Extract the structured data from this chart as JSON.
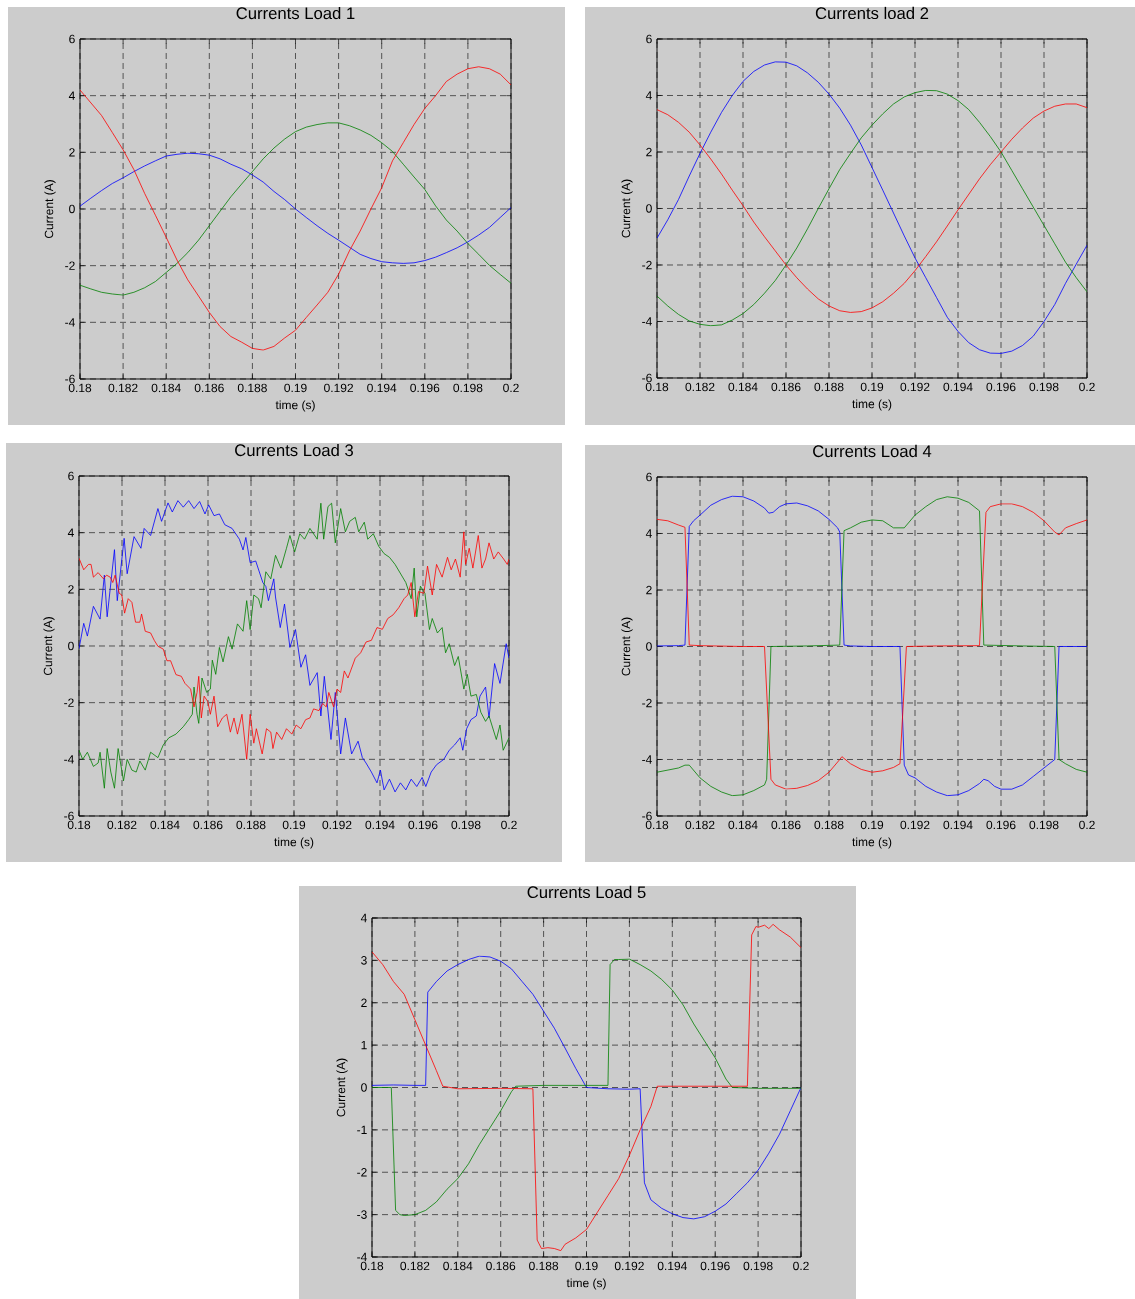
{
  "chart_data": [
    {
      "type": "line",
      "title": "Currents Load 1",
      "xlabel": "time (s)",
      "ylabel": "Current (A)",
      "xlim": [
        0.18,
        0.2
      ],
      "ylim": [
        -6,
        6
      ],
      "xticks": [
        0.18,
        0.182,
        0.184,
        0.186,
        0.188,
        0.19,
        0.192,
        0.194,
        0.196,
        0.198,
        0.2
      ],
      "yticks": [
        -6,
        -4,
        -2,
        0,
        2,
        4,
        6
      ],
      "grid": true,
      "x": [
        0.18,
        0.1805,
        0.181,
        0.1815,
        0.182,
        0.1825,
        0.183,
        0.1835,
        0.184,
        0.1845,
        0.185,
        0.1855,
        0.186,
        0.1865,
        0.187,
        0.1875,
        0.188,
        0.1885,
        0.189,
        0.1895,
        0.19,
        0.1905,
        0.191,
        0.1915,
        0.192,
        0.1925,
        0.193,
        0.1935,
        0.194,
        0.1945,
        0.195,
        0.1955,
        0.196,
        0.1965,
        0.197,
        0.1975,
        0.198,
        0.1985,
        0.199,
        0.1995,
        0.2
      ],
      "series": [
        {
          "color": "#0000ff",
          "values": [
            0.1,
            0.38,
            0.65,
            0.9,
            1.1,
            1.32,
            1.52,
            1.7,
            1.87,
            1.93,
            1.97,
            1.95,
            1.9,
            1.77,
            1.58,
            1.42,
            1.2,
            0.95,
            0.62,
            0.33,
            0.0,
            -0.3,
            -0.59,
            -0.86,
            -1.1,
            -1.35,
            -1.6,
            -1.75,
            -1.86,
            -1.9,
            -1.92,
            -1.9,
            -1.82,
            -1.7,
            -1.54,
            -1.37,
            -1.16,
            -0.92,
            -0.65,
            -0.3,
            0.05
          ]
        },
        {
          "color": "#008000",
          "values": [
            -2.69,
            -2.82,
            -2.94,
            -3.0,
            -3.04,
            -2.94,
            -2.78,
            -2.56,
            -2.24,
            -1.92,
            -1.54,
            -1.1,
            -0.59,
            -0.08,
            0.43,
            0.88,
            1.32,
            1.77,
            2.15,
            2.47,
            2.73,
            2.89,
            2.98,
            3.04,
            3.04,
            2.94,
            2.79,
            2.6,
            2.34,
            2.03,
            1.58,
            1.13,
            0.69,
            0.11,
            -0.39,
            -0.78,
            -1.22,
            -1.6,
            -1.99,
            -2.31,
            -2.62
          ]
        },
        {
          "color": "#ff0000",
          "values": [
            4.2,
            3.75,
            3.3,
            2.7,
            2.09,
            1.39,
            0.55,
            -0.22,
            -1.0,
            -1.8,
            -2.5,
            -3.07,
            -3.65,
            -4.15,
            -4.5,
            -4.7,
            -4.92,
            -4.98,
            -4.85,
            -4.55,
            -4.28,
            -3.83,
            -3.39,
            -2.94,
            -2.3,
            -1.48,
            -0.78,
            0.0,
            0.75,
            1.7,
            2.34,
            2.98,
            3.55,
            4.0,
            4.5,
            4.76,
            4.95,
            5.02,
            4.95,
            4.76,
            4.38
          ]
        }
      ]
    },
    {
      "type": "line",
      "title": "Currents load 2",
      "xlabel": "time (s)",
      "ylabel": "Current (A)",
      "xlim": [
        0.18,
        0.2
      ],
      "ylim": [
        -6,
        6
      ],
      "xticks": [
        0.18,
        0.182,
        0.184,
        0.186,
        0.188,
        0.19,
        0.192,
        0.194,
        0.196,
        0.198,
        0.2
      ],
      "yticks": [
        -6,
        -4,
        -2,
        0,
        2,
        4,
        6
      ],
      "grid": true,
      "x": [
        0.18,
        0.1805,
        0.181,
        0.1815,
        0.182,
        0.1825,
        0.183,
        0.1835,
        0.184,
        0.1845,
        0.185,
        0.1855,
        0.186,
        0.1865,
        0.187,
        0.1875,
        0.188,
        0.1885,
        0.189,
        0.1895,
        0.19,
        0.1905,
        0.191,
        0.1915,
        0.192,
        0.1925,
        0.193,
        0.1935,
        0.194,
        0.1945,
        0.195,
        0.1955,
        0.196,
        0.1965,
        0.197,
        0.1975,
        0.198,
        0.1985,
        0.199,
        0.1995,
        0.2
      ],
      "series": [
        {
          "color": "#0000ff",
          "values": [
            -1.05,
            -0.4,
            0.32,
            1.15,
            1.95,
            2.7,
            3.4,
            4.0,
            4.5,
            4.85,
            5.08,
            5.19,
            5.18,
            5.05,
            4.8,
            4.47,
            4.05,
            3.55,
            2.95,
            2.25,
            1.45,
            0.65,
            -0.16,
            -0.97,
            -1.75,
            -2.45,
            -3.15,
            -3.85,
            -4.35,
            -4.75,
            -5.0,
            -5.12,
            -5.13,
            -5.05,
            -4.85,
            -4.52,
            -4.0,
            -3.4,
            -2.65,
            -1.97,
            -1.3
          ]
        },
        {
          "color": "#008000",
          "values": [
            -3.1,
            -3.45,
            -3.75,
            -3.98,
            -4.1,
            -4.15,
            -4.12,
            -3.95,
            -3.72,
            -3.4,
            -3.0,
            -2.55,
            -2.0,
            -1.4,
            -0.72,
            0.0,
            0.7,
            1.38,
            1.95,
            2.5,
            2.95,
            3.35,
            3.7,
            3.95,
            4.1,
            4.18,
            4.17,
            4.05,
            3.82,
            3.5,
            3.05,
            2.55,
            2.0,
            1.35,
            0.7,
            0.05,
            -0.6,
            -1.25,
            -1.9,
            -2.45,
            -2.95
          ]
        },
        {
          "color": "#ff0000",
          "values": [
            3.5,
            3.32,
            3.05,
            2.7,
            2.25,
            1.75,
            1.22,
            0.65,
            0.1,
            -0.48,
            -1.0,
            -1.5,
            -2.0,
            -2.45,
            -2.85,
            -3.2,
            -3.45,
            -3.62,
            -3.68,
            -3.65,
            -3.52,
            -3.3,
            -3.0,
            -2.65,
            -2.2,
            -1.7,
            -1.18,
            -0.62,
            -0.05,
            0.5,
            1.05,
            1.55,
            2.0,
            2.45,
            2.85,
            3.2,
            3.45,
            3.62,
            3.7,
            3.7,
            3.57
          ]
        }
      ]
    },
    {
      "type": "line",
      "title": "Currents Load 3",
      "xlabel": "time (s)",
      "ylabel": "Current (A)",
      "xlim": [
        0.18,
        0.2
      ],
      "ylim": [
        -6,
        6
      ],
      "xticks": [
        0.18,
        0.182,
        0.184,
        0.186,
        0.188,
        0.19,
        0.192,
        0.194,
        0.196,
        0.198,
        0.2
      ],
      "yticks": [
        -6,
        -4,
        -2,
        0,
        2,
        4,
        6
      ],
      "grid": true,
      "series": [
        {
          "color": "#0000ff",
          "x": [
            0.18,
            0.18022,
            0.18039,
            0.18067,
            0.18098,
            0.18118,
            0.18131,
            0.18165,
            0.18178,
            0.1821,
            0.18224,
            0.18256,
            0.18288,
            0.18303,
            0.18333,
            0.18367,
            0.18384,
            0.18414,
            0.18434,
            0.1846,
            0.18485,
            0.1851,
            0.18535,
            0.18561,
            0.18586,
            0.18603,
            0.18628,
            0.18653,
            0.18678,
            0.18712,
            0.18746,
            0.18763,
            0.18776,
            0.18796,
            0.18822,
            0.18855,
            0.18869,
            0.18881,
            0.18906,
            0.18914,
            0.18936,
            0.18956,
            0.18981,
            0.19007,
            0.19032,
            0.19054,
            0.19074,
            0.19108,
            0.19125,
            0.19141,
            0.19172,
            0.19192,
            0.19217,
            0.19239,
            0.19268,
            0.19298,
            0.19318,
            0.19335,
            0.1936,
            0.19386,
            0.19402,
            0.19419,
            0.19444,
            0.1947,
            0.19495,
            0.1952,
            0.19545,
            0.19571,
            0.19596,
            0.19613,
            0.19638,
            0.19663,
            0.19697,
            0.19722,
            0.19747,
            0.19773,
            0.19785,
            0.19803,
            0.19823,
            0.19848,
            0.19865,
            0.19891,
            0.19907,
            0.19933,
            0.19958,
            0.19987,
            0.2
          ],
          "values": [
            -0.1,
            0.8,
            0.35,
            1.4,
            0.95,
            2.5,
            1.03,
            3.4,
            1.6,
            3.8,
            2.55,
            3.86,
            3.45,
            4.15,
            3.9,
            4.85,
            4.4,
            5.05,
            4.73,
            5.13,
            4.9,
            5.13,
            4.85,
            5.1,
            4.66,
            4.98,
            4.6,
            4.66,
            4.28,
            4.15,
            3.77,
            3.39,
            3.83,
            2.94,
            3.0,
            2.24,
            2.1,
            1.6,
            2.37,
            1.73,
            0.65,
            1.48,
            -0.05,
            0.58,
            -0.75,
            -0.31,
            -1.39,
            -0.94,
            -2.47,
            -1.07,
            -3.3,
            -1.64,
            -3.81,
            -2.54,
            -3.81,
            -3.36,
            -3.94,
            -4.13,
            -4.45,
            -4.83,
            -4.38,
            -5.08,
            -4.7,
            -5.15,
            -4.83,
            -5.08,
            -4.7,
            -4.96,
            -4.64,
            -4.96,
            -4.45,
            -4.19,
            -4.0,
            -3.68,
            -3.49,
            -3.24,
            -3.68,
            -2.92,
            -2.6,
            -2.47,
            -1.77,
            -1.45,
            -2.54,
            -0.62,
            -1.32,
            0.08,
            -0.43
          ]
        },
        {
          "color": "#008000",
          "x": [
            0.18,
            0.18017,
            0.18039,
            0.18067,
            0.18089,
            0.18098,
            0.18118,
            0.18131,
            0.18148,
            0.18165,
            0.18182,
            0.18207,
            0.18224,
            0.18246,
            0.18266,
            0.18283,
            0.18308,
            0.18333,
            0.18367,
            0.18392,
            0.18418,
            0.18451,
            0.18485,
            0.1851,
            0.18527,
            0.18535,
            0.18549,
            0.18557,
            0.18572,
            0.18594,
            0.18611,
            0.1862,
            0.18636,
            0.18653,
            0.1867,
            0.18695,
            0.18712,
            0.18737,
            0.18763,
            0.1878,
            0.18796,
            0.18813,
            0.18835,
            0.18847,
            0.18869,
            0.18892,
            0.18914,
            0.18939,
            0.18965,
            0.18981,
            0.19003,
            0.19027,
            0.19049,
            0.19074,
            0.19108,
            0.19125,
            0.19138,
            0.19158,
            0.19175,
            0.19192,
            0.19217,
            0.19239,
            0.19259,
            0.19285,
            0.19301,
            0.19327,
            0.19343,
            0.19369,
            0.19394,
            0.19419,
            0.19444,
            0.1947,
            0.19495,
            0.1952,
            0.19545,
            0.19559,
            0.19571,
            0.19588,
            0.19609,
            0.1963,
            0.19643,
            0.19667,
            0.19689,
            0.19705,
            0.19722,
            0.19747,
            0.19764,
            0.1979,
            0.19806,
            0.19823,
            0.19848,
            0.19869,
            0.19891,
            0.19907,
            0.19941,
            0.19958,
            0.19973,
            0.2
          ],
          "values": [
            -3.68,
            -4.0,
            -3.75,
            -4.25,
            -4.13,
            -3.75,
            -5.02,
            -3.62,
            -4.45,
            -5.02,
            -3.62,
            -4.76,
            -4.0,
            -4.38,
            -4.45,
            -4.06,
            -4.38,
            -3.75,
            -3.94,
            -3.49,
            -3.24,
            -3.11,
            -2.85,
            -2.6,
            -2.41,
            -1.45,
            -2.41,
            -2.73,
            -1.13,
            -1.64,
            -1.52,
            -0.5,
            -1.0,
            -0.05,
            -0.56,
            0.33,
            -0.11,
            0.78,
            0.52,
            1.6,
            0.58,
            1.8,
            1.67,
            1.35,
            2.62,
            2.37,
            3.2,
            2.75,
            3.45,
            3.9,
            3.32,
            3.96,
            3.77,
            4.15,
            3.77,
            5.04,
            3.77,
            4.92,
            5.04,
            3.64,
            4.85,
            4.03,
            4.4,
            4.54,
            4.03,
            4.37,
            3.77,
            3.96,
            3.52,
            3.26,
            3.13,
            2.88,
            2.56,
            2.24,
            1.67,
            2.75,
            1.03,
            2.11,
            1.86,
            0.58,
            0.97,
            0.46,
            0.65,
            -0.24,
            0.08,
            -0.69,
            -0.37,
            -1.52,
            -1.0,
            -1.77,
            -1.71,
            -2.34,
            -2.66,
            -2.47,
            -3.3,
            -2.79,
            -3.68,
            -3.24
          ]
        },
        {
          "color": "#ff0000",
          "x": [
            0.18,
            0.18022,
            0.18044,
            0.18056,
            0.18067,
            0.18089,
            0.18114,
            0.18128,
            0.18145,
            0.18157,
            0.18168,
            0.18187,
            0.18199,
            0.18212,
            0.18229,
            0.18246,
            0.18263,
            0.18283,
            0.18291,
            0.18308,
            0.18333,
            0.1835,
            0.18367,
            0.18392,
            0.18409,
            0.18426,
            0.18451,
            0.18476,
            0.18493,
            0.18519,
            0.18535,
            0.18549,
            0.18557,
            0.18569,
            0.18582,
            0.18599,
            0.18611,
            0.18628,
            0.18645,
            0.18667,
            0.18687,
            0.18704,
            0.18721,
            0.18737,
            0.18758,
            0.1878,
            0.18796,
            0.18813,
            0.18825,
            0.18852,
            0.18872,
            0.18892,
            0.18902,
            0.18919,
            0.18943,
            0.18965,
            0.1899,
            0.1901,
            0.19032,
            0.19054,
            0.19074,
            0.19091,
            0.19116,
            0.19133,
            0.1915,
            0.19162,
            0.19184,
            0.192,
            0.19217,
            0.19234,
            0.19251,
            0.19285,
            0.1931,
            0.19335,
            0.1936,
            0.19386,
            0.19411,
            0.19436,
            0.19461,
            0.19487,
            0.19512,
            0.19529,
            0.19545,
            0.19562,
            0.19579,
            0.19604,
            0.19621,
            0.19643,
            0.19663,
            0.19689,
            0.19714,
            0.19731,
            0.19751,
            0.19773,
            0.1979,
            0.19798,
            0.19815,
            0.19832,
            0.19857,
            0.19874,
            0.19891,
            0.19907,
            0.19929,
            0.1995,
            0.19975,
            0.19992,
            0.2
          ],
          "values": [
            3.1,
            2.69,
            2.88,
            2.88,
            2.43,
            2.59,
            2.37,
            2.5,
            2.43,
            2.24,
            2.5,
            1.86,
            1.8,
            1.16,
            1.67,
            1.54,
            0.84,
            0.84,
            1.13,
            0.52,
            0.46,
            0.2,
            -0.01,
            -0.11,
            -0.52,
            -0.52,
            -1.01,
            -1.07,
            -1.32,
            -1.52,
            -2.15,
            -1.64,
            -1.07,
            -2.54,
            -1.77,
            -1.96,
            -2.41,
            -1.77,
            -2.85,
            -2.54,
            -2.41,
            -3.04,
            -2.54,
            -3.11,
            -2.41,
            -4.0,
            -2.41,
            -3.43,
            -2.92,
            -3.81,
            -2.92,
            -3.04,
            -3.62,
            -3.04,
            -3.3,
            -2.92,
            -3.11,
            -2.79,
            -2.92,
            -2.6,
            -2.54,
            -2.22,
            -2.28,
            -2.03,
            -2.15,
            -1.64,
            -2.15,
            -1.52,
            -1.64,
            -0.88,
            -1.13,
            -0.43,
            -0.24,
            0.14,
            0.2,
            0.65,
            0.59,
            0.97,
            1.1,
            1.35,
            1.67,
            1.8,
            2.24,
            1.03,
            1.92,
            1.86,
            2.82,
            1.8,
            2.88,
            2.43,
            3.13,
            2.69,
            3.07,
            2.43,
            4.03,
            2.88,
            3.45,
            2.75,
            3.9,
            2.75,
            3.07,
            3.64,
            3.07,
            3.32,
            3.07,
            2.88,
            3.07
          ]
        }
      ]
    },
    {
      "type": "line",
      "title": "Currents Load 4",
      "xlabel": "time (s)",
      "ylabel": "Current (A)",
      "xlim": [
        0.18,
        0.2
      ],
      "ylim": [
        -6,
        6
      ],
      "xticks": [
        0.18,
        0.182,
        0.184,
        0.186,
        0.188,
        0.19,
        0.192,
        0.194,
        0.196,
        0.198,
        0.2
      ],
      "yticks": [
        -6,
        -4,
        -2,
        0,
        2,
        4,
        6
      ],
      "grid": true,
      "series": [
        {
          "color": "#0000ff",
          "x": [
            0.18,
            0.181,
            0.1813,
            0.1815,
            0.1817,
            0.182,
            0.1825,
            0.183,
            0.1835,
            0.184,
            0.1845,
            0.185,
            0.1852,
            0.1854,
            0.1857,
            0.186,
            0.1865,
            0.187,
            0.1875,
            0.188,
            0.1884,
            0.1885,
            0.1887,
            0.189,
            0.19,
            0.1913,
            0.1915,
            0.1917,
            0.192,
            0.1925,
            0.193,
            0.1935,
            0.194,
            0.1945,
            0.195,
            0.1952,
            0.1954,
            0.1957,
            0.196,
            0.1965,
            0.197,
            0.1975,
            0.198,
            0.1985,
            0.1987,
            0.2
          ],
          "values": [
            0.02,
            0.03,
            0.05,
            4.25,
            4.45,
            4.65,
            5.0,
            5.2,
            5.32,
            5.3,
            5.15,
            4.9,
            4.72,
            4.75,
            4.95,
            5.05,
            5.08,
            4.98,
            4.8,
            4.5,
            4.2,
            4.05,
            0.05,
            0.02,
            0.0,
            0.0,
            -4.2,
            -4.55,
            -4.65,
            -4.95,
            -5.15,
            -5.28,
            -5.25,
            -5.1,
            -4.85,
            -4.7,
            -4.75,
            -4.95,
            -5.05,
            -5.05,
            -4.9,
            -4.6,
            -4.3,
            -4.0,
            0.0,
            0.0
          ]
        },
        {
          "color": "#008000",
          "x": [
            0.18,
            0.181,
            0.1813,
            0.1815,
            0.182,
            0.1825,
            0.183,
            0.1835,
            0.184,
            0.1845,
            0.185,
            0.1851,
            0.1853,
            0.187,
            0.1885,
            0.1887,
            0.189,
            0.1895,
            0.19,
            0.1905,
            0.191,
            0.1915,
            0.192,
            0.1925,
            0.193,
            0.1935,
            0.194,
            0.1945,
            0.195,
            0.1952,
            0.197,
            0.1985,
            0.1987,
            0.199,
            0.1995,
            0.2
          ],
          "values": [
            -4.45,
            -4.3,
            -4.2,
            -4.2,
            -4.65,
            -4.95,
            -5.15,
            -5.28,
            -5.25,
            -5.1,
            -4.9,
            -4.7,
            0.0,
            0.02,
            0.05,
            4.1,
            4.2,
            4.4,
            4.48,
            4.45,
            4.2,
            4.2,
            4.65,
            4.95,
            5.2,
            5.3,
            5.25,
            5.1,
            4.8,
            0.05,
            0.02,
            0.0,
            -4.0,
            -4.15,
            -4.35,
            -4.45
          ]
        },
        {
          "color": "#ff0000",
          "x": [
            0.18,
            0.1805,
            0.181,
            0.1813,
            0.1815,
            0.182,
            0.184,
            0.185,
            0.1853,
            0.1855,
            0.186,
            0.1865,
            0.187,
            0.1875,
            0.188,
            0.1885,
            0.1886,
            0.189,
            0.1895,
            0.19,
            0.1905,
            0.191,
            0.1913,
            0.1916,
            0.193,
            0.195,
            0.1953,
            0.1955,
            0.196,
            0.1965,
            0.197,
            0.1975,
            0.198,
            0.1985,
            0.1987,
            0.199,
            0.1995,
            0.2
          ],
          "values": [
            4.5,
            4.45,
            4.3,
            4.22,
            0.05,
            0.03,
            0.0,
            0.0,
            -4.7,
            -4.9,
            -5.05,
            -5.02,
            -4.92,
            -4.75,
            -4.45,
            -4.0,
            -3.9,
            -4.15,
            -4.35,
            -4.45,
            -4.4,
            -4.28,
            -4.15,
            0.0,
            0.02,
            0.03,
            4.75,
            4.95,
            5.05,
            5.05,
            4.95,
            4.75,
            4.45,
            4.05,
            3.95,
            4.2,
            4.35,
            4.48
          ]
        }
      ]
    },
    {
      "type": "line",
      "title": "Currents Load 5",
      "xlabel": "time (s)",
      "ylabel": "Current (A)",
      "xlim": [
        0.18,
        0.2
      ],
      "ylim": [
        -4,
        4
      ],
      "xticks": [
        0.18,
        0.182,
        0.184,
        0.186,
        0.188,
        0.19,
        0.192,
        0.194,
        0.196,
        0.198,
        0.2
      ],
      "yticks": [
        -4,
        -3,
        -2,
        -1,
        0,
        1,
        2,
        3,
        4
      ],
      "grid": true,
      "series": [
        {
          "color": "#0000ff",
          "x": [
            0.18,
            0.181,
            0.182,
            0.1825,
            0.1826,
            0.183,
            0.1835,
            0.184,
            0.1845,
            0.185,
            0.1855,
            0.186,
            0.1865,
            0.187,
            0.1875,
            0.188,
            0.1885,
            0.189,
            0.1895,
            0.19,
            0.191,
            0.192,
            0.1925,
            0.1927,
            0.193,
            0.1935,
            0.194,
            0.1945,
            0.195,
            0.1955,
            0.196,
            0.1965,
            0.197,
            0.1975,
            0.198,
            0.1985,
            0.199,
            0.1995,
            0.2
          ],
          "values": [
            0.05,
            0.06,
            0.05,
            0.05,
            2.25,
            2.5,
            2.75,
            2.9,
            3.02,
            3.1,
            3.08,
            2.98,
            2.8,
            2.5,
            2.2,
            1.8,
            1.4,
            0.93,
            0.45,
            0.0,
            -0.03,
            -0.04,
            -0.03,
            -2.25,
            -2.65,
            -2.85,
            -2.98,
            -3.07,
            -3.1,
            -3.05,
            -2.92,
            -2.75,
            -2.5,
            -2.25,
            -1.95,
            -1.55,
            -1.1,
            -0.55,
            0.0
          ]
        },
        {
          "color": "#008000",
          "x": [
            0.18,
            0.1809,
            0.1811,
            0.1813,
            0.1815,
            0.182,
            0.1825,
            0.183,
            0.1835,
            0.184,
            0.1845,
            0.185,
            0.1855,
            0.186,
            0.1865,
            0.1867,
            0.188,
            0.19,
            0.191,
            0.1911,
            0.1913,
            0.1915,
            0.192,
            0.1925,
            0.193,
            0.1935,
            0.194,
            0.1945,
            0.195,
            0.1955,
            0.196,
            0.1965,
            0.1968,
            0.198,
            0.2
          ],
          "values": [
            0.0,
            0.0,
            -2.9,
            -3.0,
            -3.02,
            -3.0,
            -2.9,
            -2.7,
            -2.4,
            -2.15,
            -1.8,
            -1.35,
            -0.95,
            -0.55,
            -0.1,
            0.03,
            0.05,
            0.05,
            0.05,
            2.9,
            3.02,
            3.02,
            3.03,
            2.9,
            2.75,
            2.55,
            2.3,
            1.95,
            1.5,
            1.1,
            0.7,
            0.2,
            0.0,
            -0.02,
            -0.02
          ]
        },
        {
          "color": "#ff0000",
          "x": [
            0.18,
            0.1805,
            0.181,
            0.1815,
            0.182,
            0.1825,
            0.183,
            0.1833,
            0.184,
            0.186,
            0.1875,
            0.1877,
            0.1879,
            0.1882,
            0.1885,
            0.1888,
            0.189,
            0.1895,
            0.19,
            0.1905,
            0.191,
            0.1915,
            0.192,
            0.1925,
            0.193,
            0.1933,
            0.195,
            0.1975,
            0.1977,
            0.1979,
            0.198,
            0.1983,
            0.1985,
            0.1987,
            0.199,
            0.1995,
            0.2
          ],
          "values": [
            3.2,
            2.9,
            2.5,
            2.2,
            1.6,
            1.0,
            0.4,
            0.03,
            -0.03,
            -0.02,
            -0.03,
            -3.6,
            -3.8,
            -3.78,
            -3.8,
            -3.85,
            -3.7,
            -3.55,
            -3.35,
            -2.95,
            -2.55,
            -2.15,
            -1.6,
            -1.0,
            -0.45,
            0.03,
            0.03,
            0.03,
            3.6,
            3.8,
            3.78,
            3.83,
            3.75,
            3.85,
            3.72,
            3.55,
            3.3
          ]
        }
      ]
    }
  ]
}
